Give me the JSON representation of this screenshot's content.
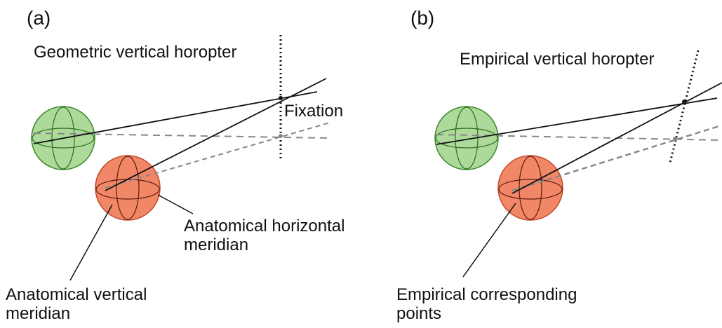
{
  "panels": [
    {
      "tag": "(a)",
      "horopter": "Geometric vertical horopter",
      "fixation": "Fixation",
      "horizontal_meridian": [
        "Anatomical horizontal",
        "meridian"
      ],
      "vertical_meridian": [
        "Anatomical vertical",
        "meridian"
      ]
    },
    {
      "tag": "(b)",
      "horopter": "Empirical vertical horopter",
      "corresponding_points": [
        "Empirical corresponding",
        "points"
      ]
    }
  ]
}
